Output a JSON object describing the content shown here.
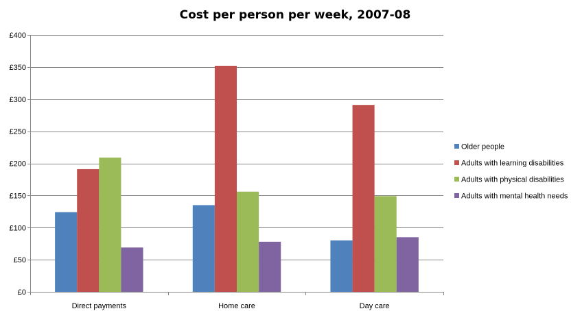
{
  "chart_data": {
    "type": "bar",
    "title": "Cost per person per week, 2007-08",
    "xlabel": "",
    "ylabel": "",
    "categories": [
      "Direct payments",
      "Home care",
      "Day care"
    ],
    "series": [
      {
        "name": "Older people",
        "values": [
          124,
          135,
          80
        ],
        "color": "#4F81BD"
      },
      {
        "name": "Adults with learning disabilities",
        "values": [
          191,
          352,
          291
        ],
        "color": "#C0504D"
      },
      {
        "name": "Adults with physical disabilities",
        "values": [
          209,
          156,
          149
        ],
        "color": "#9BBB59"
      },
      {
        "name": "Adults with mental health needs",
        "values": [
          69,
          78,
          85
        ],
        "color": "#8064A2"
      }
    ],
    "ylim": [
      0,
      400
    ],
    "yticks": [
      0,
      50,
      100,
      150,
      200,
      250,
      300,
      350,
      400
    ],
    "ytick_labels": [
      "£0",
      "£50",
      "£100",
      "£150",
      "£200",
      "£250",
      "£300",
      "£350",
      "£400"
    ],
    "grid": true,
    "legend_position": "right"
  }
}
